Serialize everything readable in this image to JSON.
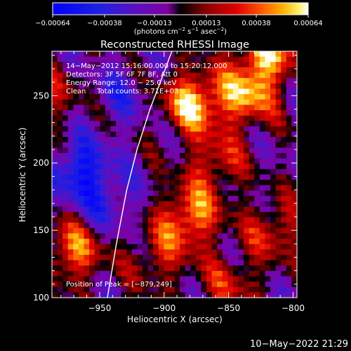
{
  "chart_data": {
    "type": "heatmap",
    "title": "Reconstructed RHESSI Image",
    "xlabel": "Heliocentric X (arcsec)",
    "ylabel": "Heliocentric Y (arcsec)",
    "xlim": [
      -987,
      -797
    ],
    "ylim": [
      100,
      283
    ],
    "x_ticks": [
      -950,
      -900,
      -850,
      -800
    ],
    "x_tick_labels": [
      "−950",
      "−900",
      "−850",
      "−800"
    ],
    "y_ticks": [
      100,
      150,
      200,
      250
    ],
    "y_tick_labels": [
      "100",
      "150",
      "200",
      "250"
    ],
    "colorbar": {
      "range": [
        -0.00064,
        0.00064
      ],
      "ticks": [
        -0.00064,
        -0.00038,
        -0.00013,
        0.00013,
        0.00038,
        0.00064
      ],
      "tick_labels": [
        "−0.00064",
        "−0.00038",
        "−0.00013",
        "0.00013",
        "0.00038",
        "0.00064"
      ],
      "unit_prefix": "(photons cm",
      "unit_exp1": "−2",
      "unit_mid1": " s",
      "unit_exp2": "−1",
      "unit_mid2": " asec",
      "unit_exp3": "−2",
      "unit_suffix": ")"
    },
    "info_lines": [
      "14−May−2012 15:16:00.000 to 15:20:12.000",
      "Detectors: 3F 5F 6F 7F 8F, Att 0",
      "Energy Range: 12.0 − 25.0 keV",
      "Clean     Total counts: 3.71E+03"
    ],
    "peak_label": "Position of Peak = [−879,249]",
    "peak": {
      "x": -879,
      "y": 249
    },
    "limb_curve": [
      {
        "x": -944,
        "y": 100
      },
      {
        "x": -937,
        "y": 140
      },
      {
        "x": -929,
        "y": 180
      },
      {
        "x": -921,
        "y": 210
      },
      {
        "x": -911,
        "y": 240
      },
      {
        "x": -901,
        "y": 265
      },
      {
        "x": -894,
        "y": 283
      }
    ],
    "bright_sources": [
      {
        "x": -878,
        "y": 245,
        "value": 0.00064
      },
      {
        "x": -880,
        "y": 160,
        "value": 0.00055
      },
      {
        "x": -836,
        "y": 250,
        "value": 0.00055
      },
      {
        "x": -820,
        "y": 282,
        "value": 0.0006
      },
      {
        "x": -970,
        "y": 135,
        "value": 0.0005
      },
      {
        "x": -860,
        "y": 200,
        "value": 0.00035
      },
      {
        "x": -815,
        "y": 150,
        "value": 0.00035
      },
      {
        "x": -905,
        "y": 130,
        "value": 0.0003
      },
      {
        "x": -850,
        "y": 110,
        "value": 0.0003
      },
      {
        "x": -985,
        "y": 250,
        "value": 0.00025
      }
    ],
    "dim_regions": [
      {
        "x": -965,
        "y": 195,
        "value": -0.00045
      },
      {
        "x": -935,
        "y": 250,
        "value": -0.0002
      },
      {
        "x": -945,
        "y": 170,
        "value": -0.00025
      }
    ]
  },
  "footer": {
    "timestamp": "10−May−2022 21:29"
  },
  "colors": {
    "background": "#000000",
    "axes": "#ffffff",
    "limb": "#ffffff"
  }
}
